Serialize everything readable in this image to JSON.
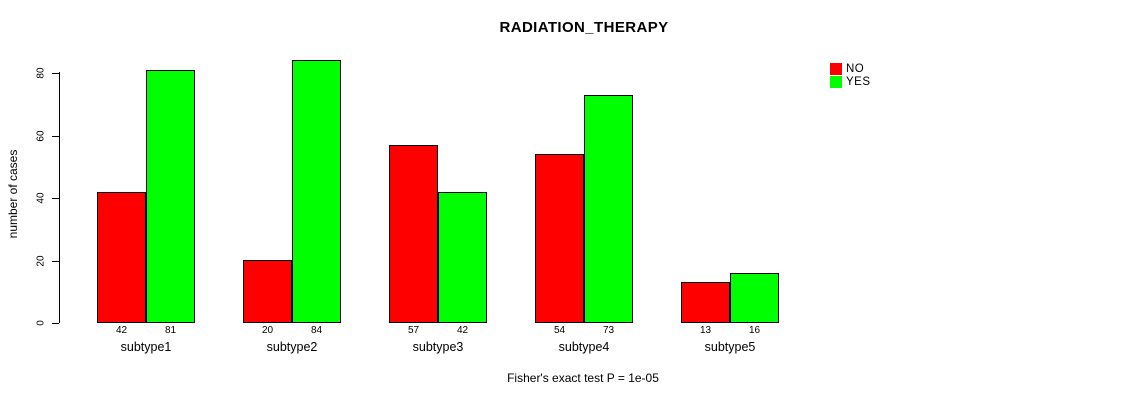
{
  "title": "RADIATION_THERAPY",
  "caption": "Fisher's exact test P = 1e-05",
  "chart_data": {
    "type": "bar",
    "title": "RADIATION_THERAPY",
    "categories": [
      "subtype1",
      "subtype2",
      "subtype3",
      "subtype4",
      "subtype5"
    ],
    "series": [
      {
        "name": "NO",
        "color": "#ff0000",
        "values": [
          42,
          20,
          57,
          54,
          13
        ]
      },
      {
        "name": "YES",
        "color": "#00ff00",
        "values": [
          81,
          84,
          42,
          73,
          16
        ]
      }
    ],
    "xlabel": "",
    "ylabel": "number of cases",
    "ylim": [
      0,
      80
    ],
    "yticks": [
      0,
      20,
      40,
      60,
      80
    ],
    "bar_value_labels_shown": true,
    "grid": false,
    "legend_position": "top-right",
    "annotation": "Fisher's exact test P = 1e-05",
    "bar_border_color": "#000000",
    "background_color": "#ffffff"
  }
}
